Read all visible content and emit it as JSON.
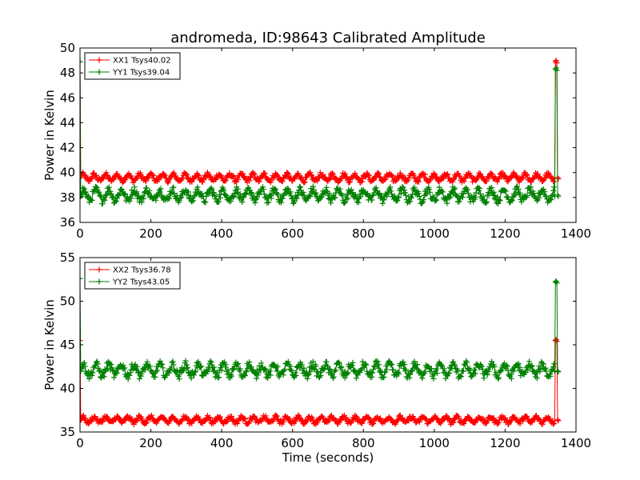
{
  "figure": {
    "title": "andromeda, ID:98643 Calibrated Amplitude"
  },
  "chart_data": [
    {
      "type": "line",
      "title": "andromeda, ID:98643 Calibrated Amplitude",
      "xlabel": "",
      "ylabel": "Power in Kelvin",
      "xlim": [
        0,
        1400
      ],
      "ylim": [
        36,
        50
      ],
      "xticks": [
        0,
        200,
        400,
        600,
        800,
        1000,
        1200,
        1400
      ],
      "yticks": [
        36,
        38,
        40,
        42,
        44,
        46,
        48,
        50
      ],
      "grid": false,
      "legend_position": "top-left",
      "marker": "+",
      "series": [
        {
          "name": "XX1 Tsys40.02",
          "color": "#ff0000",
          "start_x": 0,
          "start_value": 48.9,
          "baseline": 39.6,
          "x_range": [
            2,
            1338
          ],
          "end_points": [
            [
              1340,
              39.6
            ],
            [
              1342,
              48.9
            ],
            [
              1344,
              49.0
            ],
            [
              1346,
              48.8
            ],
            [
              1348,
              39.6
            ],
            [
              1350,
              39.5
            ]
          ]
        },
        {
          "name": "YY1 Tsys39.04",
          "color": "#008000",
          "start_x": 0,
          "start_value": 48.9,
          "baseline": 38.2,
          "x_range": [
            2,
            1338
          ],
          "end_points": [
            [
              1340,
              38.1
            ],
            [
              1342,
              48.3
            ],
            [
              1344,
              48.4
            ],
            [
              1346,
              48.2
            ],
            [
              1348,
              38.2
            ],
            [
              1350,
              38.1
            ]
          ]
        }
      ]
    },
    {
      "type": "line",
      "title": "",
      "xlabel": "Time (seconds)",
      "ylabel": "Power in Kelvin",
      "xlim": [
        0,
        1400
      ],
      "ylim": [
        35,
        55
      ],
      "xticks": [
        0,
        200,
        400,
        600,
        800,
        1000,
        1200,
        1400
      ],
      "yticks": [
        35,
        40,
        45,
        50,
        55
      ],
      "grid": false,
      "legend_position": "top-left",
      "marker": "+",
      "series": [
        {
          "name": "XX2 Tsys36.78",
          "color": "#ff0000",
          "start_x": 0,
          "start_value": 45.5,
          "baseline": 36.4,
          "x_range": [
            2,
            1338
          ],
          "end_points": [
            [
              1340,
              36.3
            ],
            [
              1342,
              45.5
            ],
            [
              1344,
              45.6
            ],
            [
              1346,
              45.4
            ],
            [
              1348,
              36.4
            ],
            [
              1350,
              36.3
            ]
          ]
        },
        {
          "name": "YY2 Tsys43.05",
          "color": "#008000",
          "start_x": 0,
          "start_value": 52.6,
          "baseline": 42.1,
          "x_range": [
            2,
            1338
          ],
          "end_points": [
            [
              1340,
              42.0
            ],
            [
              1342,
              52.2
            ],
            [
              1344,
              52.3
            ],
            [
              1346,
              52.1
            ],
            [
              1348,
              42.0
            ],
            [
              1350,
              41.9
            ]
          ]
        }
      ]
    }
  ]
}
